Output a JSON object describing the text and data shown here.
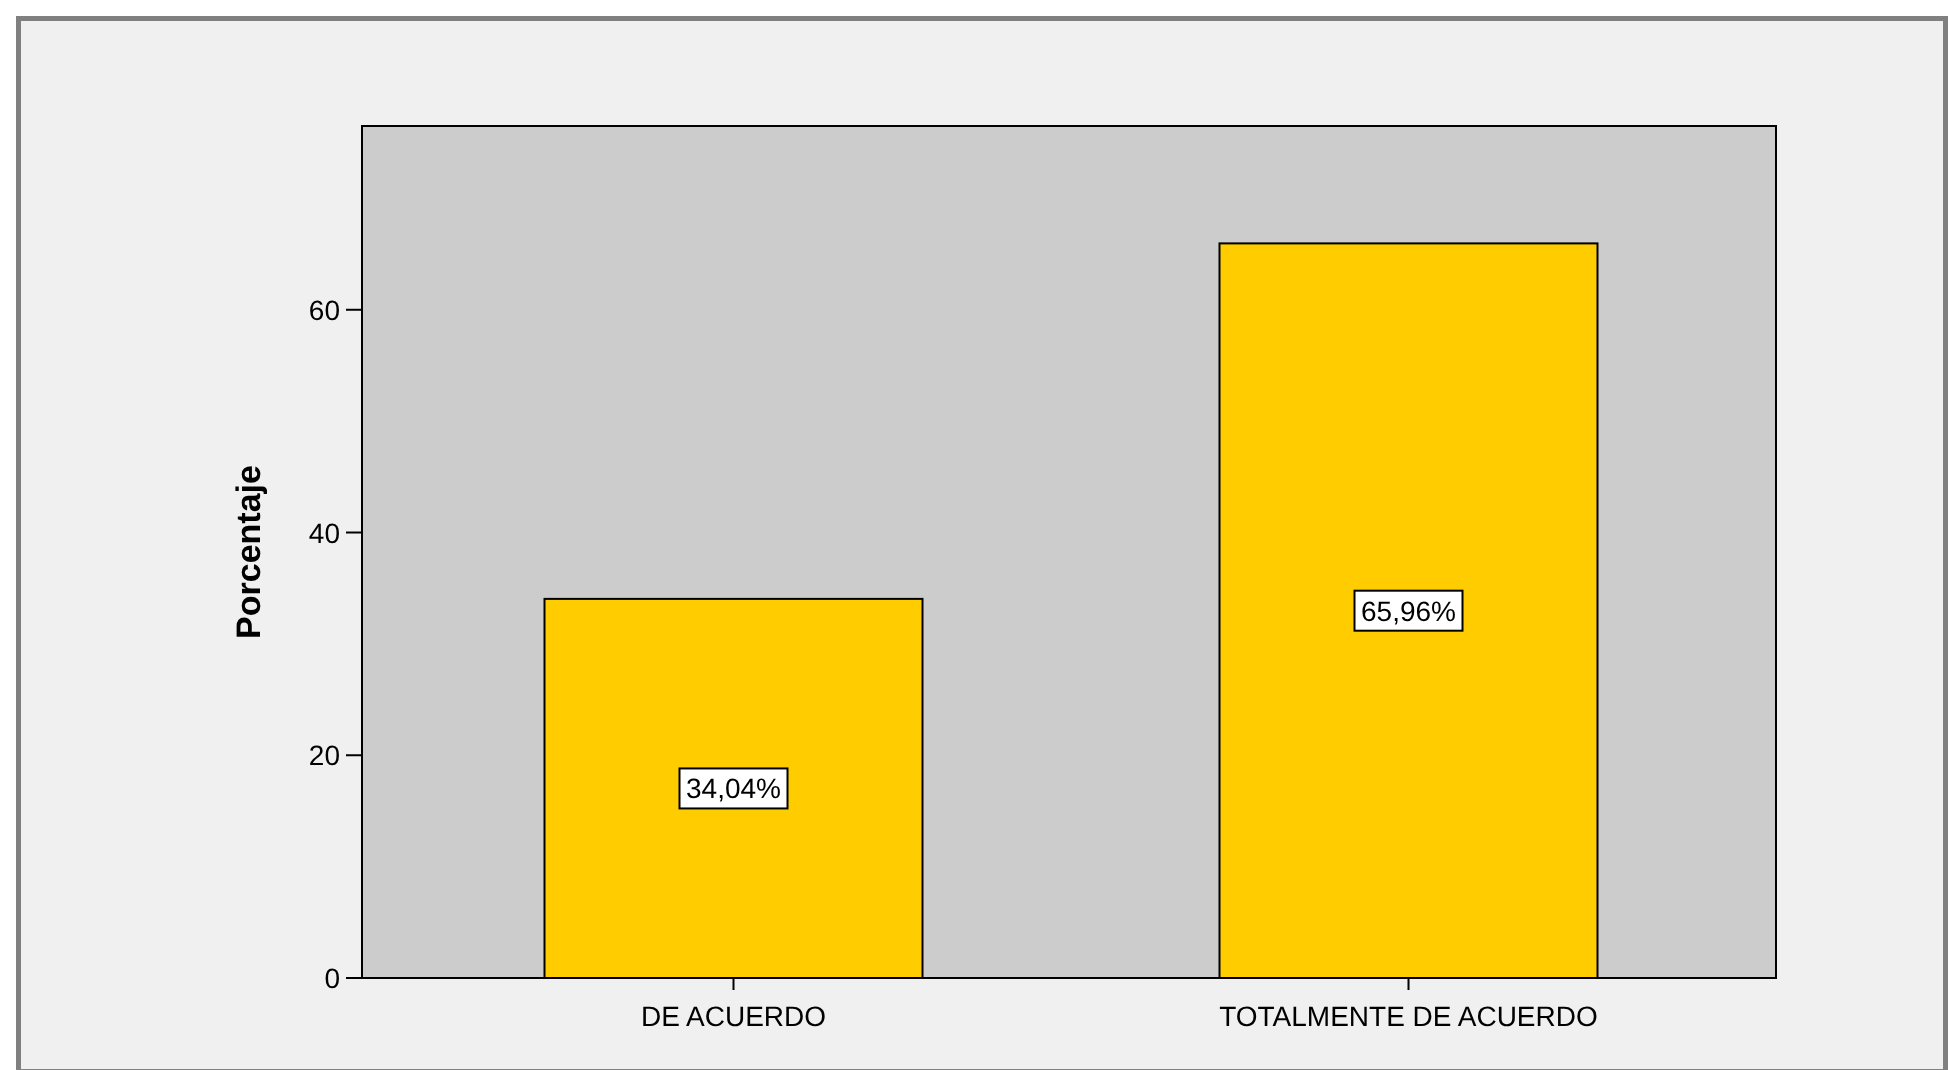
{
  "chart_data": {
    "type": "bar",
    "ylabel": "Porcentaje",
    "categories": [
      "DE ACUERDO",
      "TOTALMENTE DE ACUERDO"
    ],
    "values": [
      34.04,
      65.96
    ],
    "value_labels": [
      "34,04%",
      "65,96%"
    ],
    "color": "#ffcc00",
    "ylim": [
      0,
      76.5
    ],
    "yticks": [
      0,
      20,
      40,
      60
    ],
    "grid": false
  }
}
